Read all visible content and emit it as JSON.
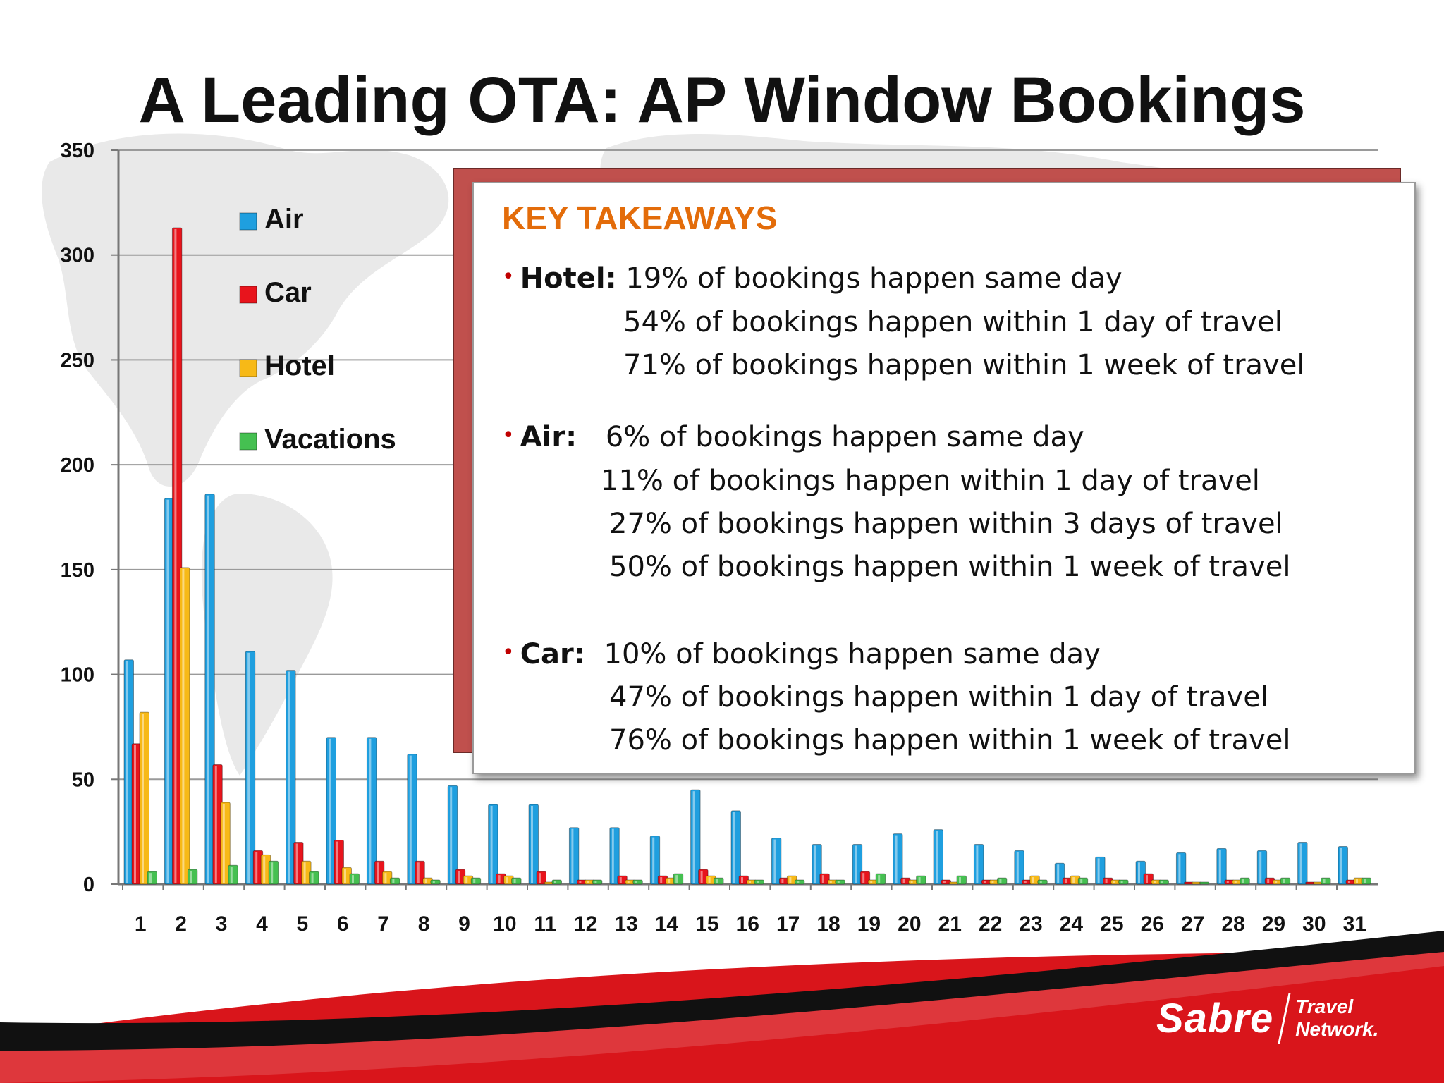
{
  "title": "A Leading OTA: AP Window Bookings",
  "colors": {
    "air": "#1f9fdf",
    "car": "#e8141c",
    "hotel": "#f7b917",
    "vacations": "#45c051",
    "callout_border": "#c0504d",
    "takeaways_title": "#e36c0a",
    "bullet": "#c00000",
    "footer_red": "#d9151b"
  },
  "chart_data": {
    "type": "bar",
    "categories": [
      "1",
      "2",
      "3",
      "4",
      "5",
      "6",
      "7",
      "8",
      "9",
      "10",
      "11",
      "12",
      "13",
      "14",
      "15",
      "16",
      "17",
      "18",
      "19",
      "20",
      "21",
      "22",
      "23",
      "24",
      "25",
      "26",
      "27",
      "28",
      "29",
      "30",
      "31"
    ],
    "ylim": [
      0,
      350
    ],
    "yticks": [
      0,
      50,
      100,
      150,
      200,
      250,
      300,
      350
    ],
    "grid": true,
    "legend_position": "top-left",
    "series": [
      {
        "name": "Air",
        "color": "#1f9fdf",
        "values": [
          107,
          184,
          186,
          111,
          102,
          70,
          70,
          62,
          47,
          38,
          38,
          27,
          27,
          23,
          45,
          35,
          22,
          19,
          19,
          24,
          26,
          19,
          16,
          10,
          13,
          11,
          15,
          17,
          16,
          20,
          18
        ]
      },
      {
        "name": "Car",
        "color": "#e8141c",
        "values": [
          67,
          313,
          57,
          16,
          20,
          21,
          11,
          11,
          7,
          5,
          6,
          2,
          4,
          4,
          7,
          4,
          3,
          5,
          6,
          3,
          2,
          2,
          2,
          3,
          3,
          5,
          1,
          2,
          3,
          1,
          2
        ]
      },
      {
        "name": "Hotel",
        "color": "#f7b917",
        "values": [
          82,
          151,
          39,
          14,
          11,
          8,
          6,
          3,
          4,
          4,
          1,
          2,
          2,
          3,
          4,
          2,
          4,
          2,
          2,
          2,
          1,
          2,
          4,
          4,
          2,
          2,
          1,
          2,
          2,
          1,
          3
        ]
      },
      {
        "name": "Vacations",
        "color": "#45c051",
        "values": [
          6,
          7,
          9,
          11,
          6,
          5,
          3,
          2,
          3,
          3,
          2,
          2,
          2,
          5,
          3,
          2,
          2,
          2,
          5,
          4,
          4,
          3,
          2,
          3,
          2,
          2,
          1,
          3,
          3,
          3,
          3
        ]
      }
    ]
  },
  "takeaways": {
    "title": "KEY TAKEAWAYS",
    "bullet": "•",
    "hotel": {
      "label": "Hotel:",
      "lines": [
        "19% of bookings happen same day",
        "54% of bookings happen within 1 day of travel",
        "71% of bookings happen within 1 week of travel"
      ]
    },
    "air": {
      "label": "Air:",
      "lines": [
        "6% of bookings happen same day",
        "11% of bookings happen within 1 day of travel",
        "27% of bookings happen within 3 days of travel",
        "50% of bookings happen within 1 week of travel"
      ]
    },
    "car": {
      "label": "Car:",
      "lines": [
        "10% of bookings happen same day",
        "47% of bookings happen within 1 day of travel",
        "76% of bookings happen within 1 week of travel"
      ]
    }
  },
  "logo": {
    "name": "Sabre",
    "sub_line1": "Travel",
    "sub_line2": "Network."
  }
}
